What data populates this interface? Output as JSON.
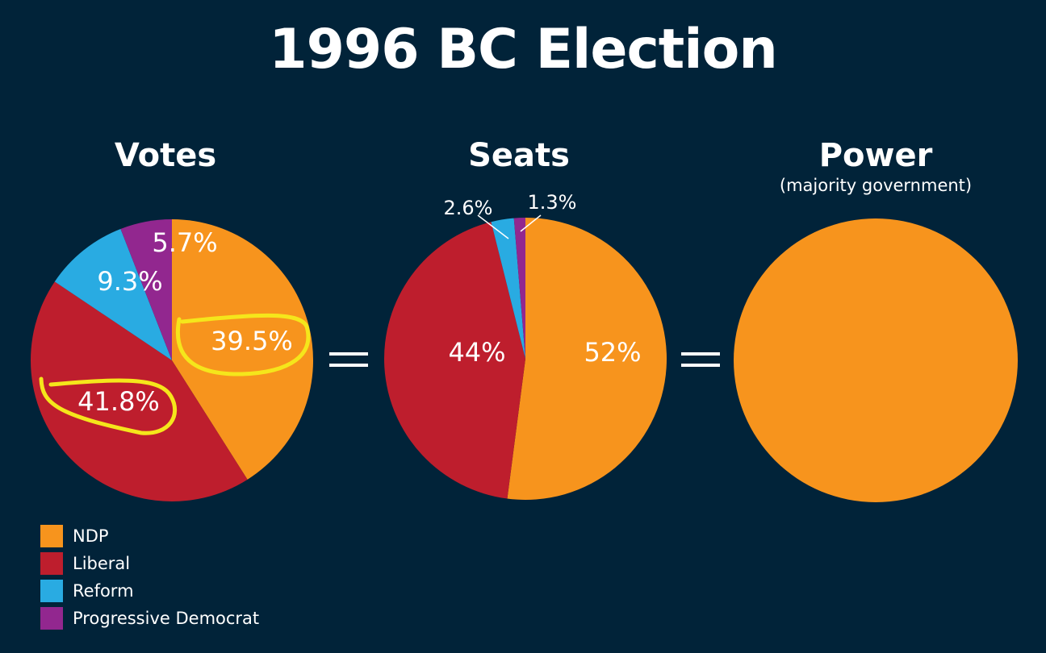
{
  "title": "1996 BC Election",
  "colors": {
    "background": "#012339",
    "highlight": "#f5e61b"
  },
  "legend": [
    {
      "label": "NDP",
      "color": "#f7941d"
    },
    {
      "label": "Liberal",
      "color": "#be1e2d"
    },
    {
      "label": "Reform",
      "color": "#29abe2"
    },
    {
      "label": "Progressive Democrat",
      "color": "#92278f"
    }
  ],
  "chart_data": [
    {
      "type": "pie",
      "title": "Votes",
      "categories": [
        "NDP",
        "Liberal",
        "Reform",
        "Progressive Democrat"
      ],
      "values": [
        39.5,
        41.8,
        9.3,
        5.7
      ],
      "labels": [
        "39.5%",
        "41.8%",
        "9.3%",
        "5.7%"
      ],
      "highlighted": [
        "NDP",
        "Liberal"
      ]
    },
    {
      "type": "pie",
      "title": "Seats",
      "categories": [
        "NDP",
        "Liberal",
        "Reform",
        "Progressive Democrat"
      ],
      "values": [
        52,
        44,
        2.6,
        1.3
      ],
      "labels": [
        "52%",
        "44%",
        "2.6%",
        "1.3%"
      ]
    },
    {
      "type": "pie",
      "title": "Power",
      "subtitle": "(majority government)",
      "categories": [
        "NDP"
      ],
      "values": [
        100
      ]
    }
  ]
}
